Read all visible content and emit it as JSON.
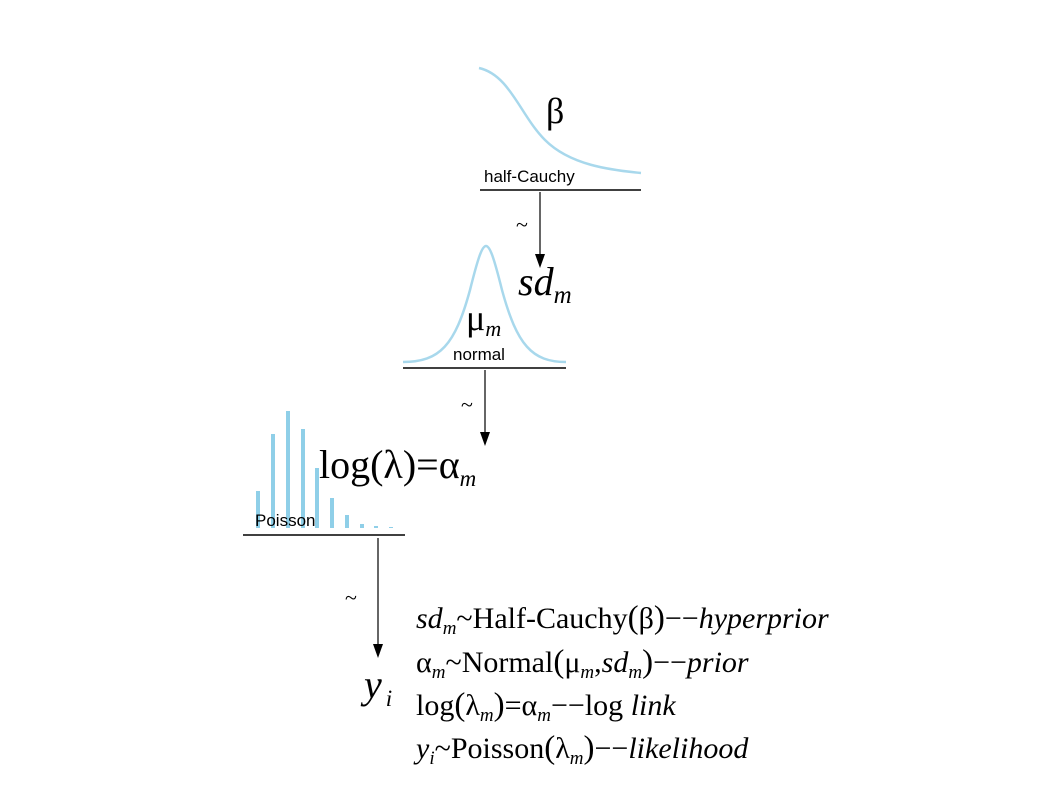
{
  "diagram": {
    "level1": {
      "distribution_label": "half-Cauchy",
      "parameter_symbol": "β",
      "relation_symbol": "~",
      "child_symbol": "sd",
      "child_subscript": "m"
    },
    "level2": {
      "distribution_label": "normal",
      "parameter_symbol": "μ",
      "parameter_subscript": "m",
      "relation_symbol": "~"
    },
    "level3": {
      "distribution_label": "Poisson",
      "link_expression": "log(λ)=α",
      "link_subscript": "m",
      "relation_symbol": "~",
      "outcome_symbol": "y",
      "outcome_subscript": "i"
    },
    "colors": {
      "curve": "#a8d8ec",
      "bars": "#8fcfe8",
      "lines": "#000000"
    }
  },
  "equations": {
    "line1": {
      "lhs": "sd",
      "lhs_sub": "m",
      "tilde": "~",
      "dist": "Half-Cauchy",
      "arg": "β",
      "sep": "−−",
      "note": "hyperprior"
    },
    "line2": {
      "lhs": "α",
      "lhs_sub": "m",
      "tilde": "~",
      "dist": "Normal",
      "arg1": "μ",
      "arg1_sub": "m",
      "comma": ",",
      "arg2": "sd",
      "arg2_sub": "m",
      "sep": "−−",
      "note": "prior"
    },
    "line3": {
      "lhs": "log",
      "arg": "λ",
      "arg_sub": "m",
      "eq": "=",
      "rhs": "α",
      "rhs_sub": "m",
      "sep": "−−",
      "word": "log",
      "note": "link"
    },
    "line4": {
      "lhs": "y",
      "lhs_sub": "i",
      "tilde": "~",
      "dist": "Poisson",
      "arg": "λ",
      "arg_sub": "m",
      "sep": "−−",
      "note": "likelihood"
    }
  }
}
